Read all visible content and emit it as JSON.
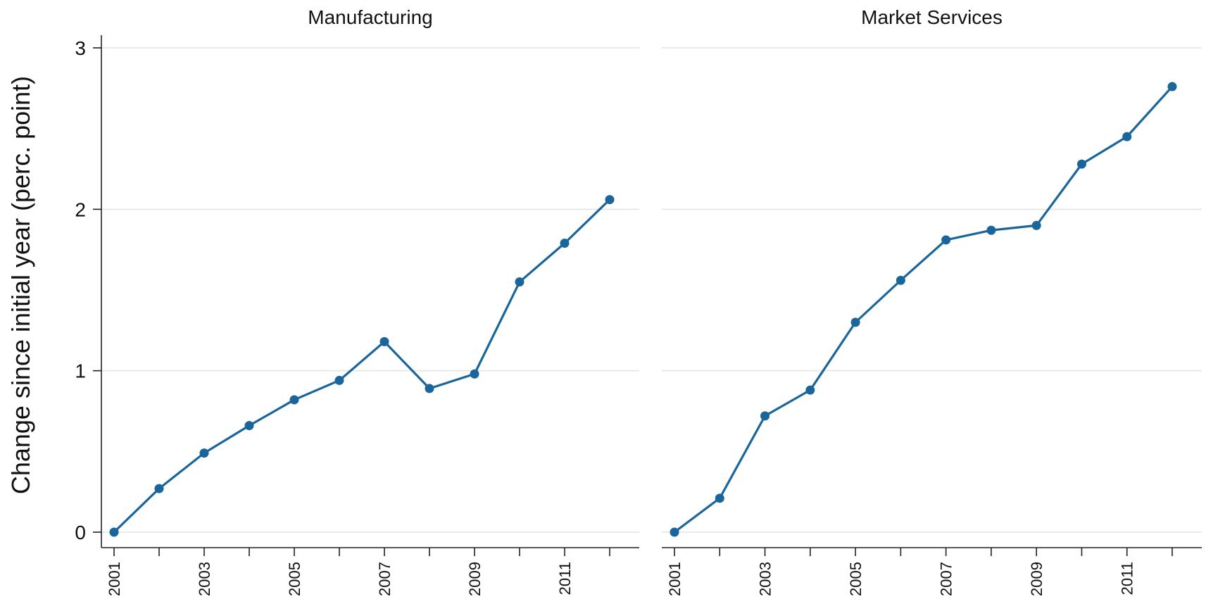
{
  "colors": {
    "series": "#1a659a",
    "background": "#ffffff"
  },
  "y_axis_title": "Change since initial year (perc. point)",
  "chart_data": [
    {
      "type": "line",
      "title": "Manufacturing",
      "xlabel": "",
      "ylabel": "Change since initial year (perc. point)",
      "x": [
        2001,
        2002,
        2003,
        2004,
        2005,
        2006,
        2007,
        2008,
        2009,
        2010,
        2011,
        2012
      ],
      "x_tick_labels": [
        "2001",
        "2003",
        "2005",
        "2007",
        "2009",
        "2011"
      ],
      "y_tick_labels": [
        "0",
        "1",
        "2",
        "3"
      ],
      "xlim": [
        2001,
        2012
      ],
      "ylim": [
        0,
        3
      ],
      "grid": true,
      "series": [
        {
          "values": [
            0,
            0.27,
            0.49,
            0.66,
            0.82,
            0.94,
            1.18,
            0.89,
            0.98,
            1.55,
            1.79,
            2.06
          ]
        }
      ]
    },
    {
      "type": "line",
      "title": "Market Services",
      "xlabel": "",
      "ylabel": "",
      "x": [
        2001,
        2002,
        2003,
        2004,
        2005,
        2006,
        2007,
        2008,
        2009,
        2010,
        2011,
        2012
      ],
      "x_tick_labels": [
        "2001",
        "2003",
        "2005",
        "2007",
        "2009",
        "2011"
      ],
      "y_tick_labels": [],
      "xlim": [
        2001,
        2012
      ],
      "ylim": [
        0,
        3
      ],
      "grid": true,
      "series": [
        {
          "values": [
            0,
            0.21,
            0.72,
            0.88,
            1.3,
            1.56,
            1.81,
            1.87,
            1.9,
            2.28,
            2.45,
            2.76
          ]
        }
      ]
    }
  ]
}
